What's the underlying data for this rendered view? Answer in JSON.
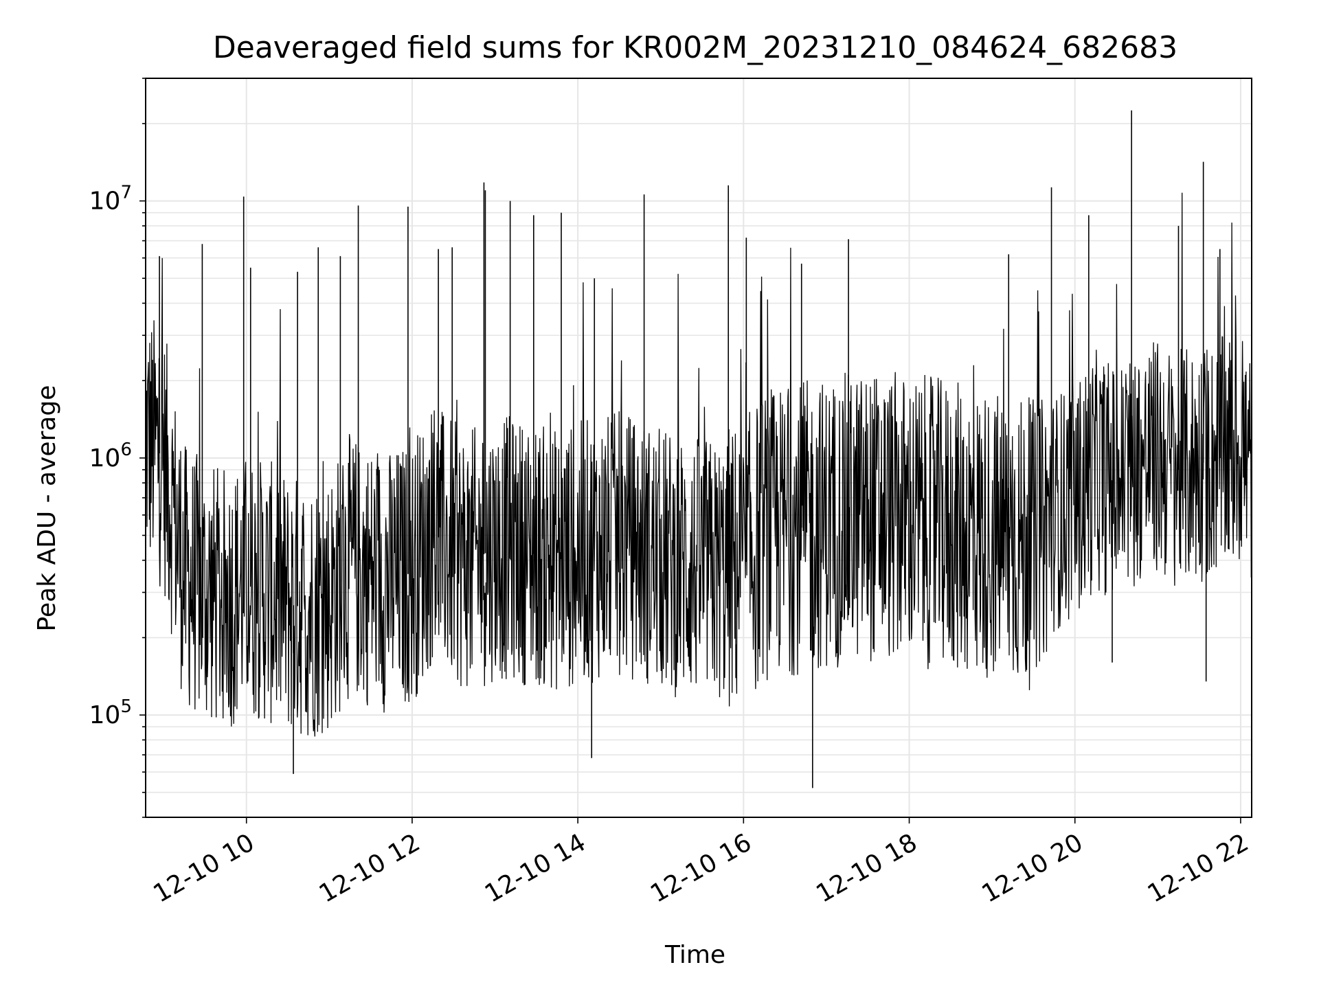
{
  "chart_data": {
    "type": "line",
    "title": "Deaveraged field sums for KR002M_20231210_084624_682683",
    "xlabel": "Time",
    "ylabel": "Peak ADU - average",
    "yscale": "log",
    "ylim": [
      40000,
      30000000
    ],
    "xlim": [
      "2023-12-10T08:47",
      "2023-12-10T22:08"
    ],
    "grid": true,
    "line_color": "#000000",
    "grid_color": "#e6e6e6",
    "y_ticks": [
      {
        "value": 100000,
        "base": "10",
        "exp": "5"
      },
      {
        "value": 1000000,
        "base": "10",
        "exp": "6"
      },
      {
        "value": 10000000,
        "base": "10",
        "exp": "7"
      }
    ],
    "x_ticks": [
      {
        "value": "2023-12-10T10:00",
        "label": "12-10 10"
      },
      {
        "value": "2023-12-10T12:00",
        "label": "12-10 12"
      },
      {
        "value": "2023-12-10T14:00",
        "label": "12-10 14"
      },
      {
        "value": "2023-12-10T16:00",
        "label": "12-10 16"
      },
      {
        "value": "2023-12-10T18:00",
        "label": "12-10 18"
      },
      {
        "value": "2023-12-10T20:00",
        "label": "12-10 20"
      },
      {
        "value": "2023-12-10T22:00",
        "label": "12-10 22"
      }
    ],
    "series": [
      {
        "x": [
          "2023-12-10T08:47",
          "2023-12-10T09:00",
          "2023-12-10T09:15",
          "2023-12-10T09:30",
          "2023-12-10T09:45",
          "2023-12-10T10:00",
          "2023-12-10T10:15",
          "2023-12-10T10:30",
          "2023-12-10T10:45",
          "2023-12-10T11:00",
          "2023-12-10T11:15",
          "2023-12-10T11:30",
          "2023-12-10T11:45",
          "2023-12-10T12:00",
          "2023-12-10T12:15",
          "2023-12-10T12:30",
          "2023-12-10T12:45",
          "2023-12-10T13:00",
          "2023-12-10T13:15",
          "2023-12-10T13:30",
          "2023-12-10T13:45",
          "2023-12-10T14:00",
          "2023-12-10T14:15",
          "2023-12-10T14:30",
          "2023-12-10T14:45",
          "2023-12-10T15:00",
          "2023-12-10T15:15",
          "2023-12-10T15:30",
          "2023-12-10T15:45",
          "2023-12-10T16:00",
          "2023-12-10T16:15",
          "2023-12-10T16:30",
          "2023-12-10T16:45",
          "2023-12-10T17:00",
          "2023-12-10T17:15",
          "2023-12-10T17:30",
          "2023-12-10T17:45",
          "2023-12-10T18:00",
          "2023-12-10T18:15",
          "2023-12-10T18:30",
          "2023-12-10T18:45",
          "2023-12-10T19:00",
          "2023-12-10T19:15",
          "2023-12-10T19:30",
          "2023-12-10T19:45",
          "2023-12-10T20:00",
          "2023-12-10T20:15",
          "2023-12-10T20:30",
          "2023-12-10T20:45",
          "2023-12-10T21:00",
          "2023-12-10T21:15",
          "2023-12-10T21:30",
          "2023-12-10T21:45",
          "2023-12-10T22:00",
          "2023-12-10T22:08"
        ],
        "y": [
          1200000,
          1000000,
          350000,
          300000,
          280000,
          320000,
          300000,
          270000,
          260000,
          280000,
          380000,
          350000,
          330000,
          360000,
          520000,
          420000,
          400000,
          450000,
          440000,
          420000,
          400000,
          420000,
          450000,
          460000,
          440000,
          400000,
          380000,
          370000,
          360000,
          380000,
          500000,
          520000,
          540000,
          560000,
          580000,
          600000,
          590000,
          580000,
          560000,
          540000,
          520000,
          500000,
          480000,
          460000,
          620000,
          680000,
          900000,
          800000,
          950000,
          1000000,
          900000,
          950000,
          1000000,
          1100000,
          900000
        ]
      }
    ],
    "spikes": [
      {
        "x": "2023-12-10T08:57",
        "y": 6100000
      },
      {
        "x": "2023-12-10T09:28",
        "y": 6800000
      },
      {
        "x": "2023-12-10T09:58",
        "y": 10400000
      },
      {
        "x": "2023-12-10T10:03",
        "y": 5500000
      },
      {
        "x": "2023-12-10T10:37",
        "y": 5300000
      },
      {
        "x": "2023-12-10T10:52",
        "y": 6600000
      },
      {
        "x": "2023-12-10T11:08",
        "y": 6100000
      },
      {
        "x": "2023-12-10T11:21",
        "y": 9600000
      },
      {
        "x": "2023-12-10T11:57",
        "y": 9500000
      },
      {
        "x": "2023-12-10T12:19",
        "y": 6500000
      },
      {
        "x": "2023-12-10T12:29",
        "y": 6600000
      },
      {
        "x": "2023-12-10T12:52",
        "y": 11800000
      },
      {
        "x": "2023-12-10T12:53",
        "y": 11000000
      },
      {
        "x": "2023-12-10T13:11",
        "y": 10000000
      },
      {
        "x": "2023-12-10T13:28",
        "y": 8800000
      },
      {
        "x": "2023-12-10T13:48",
        "y": 9000000
      },
      {
        "x": "2023-12-10T14:12",
        "y": 5000000
      },
      {
        "x": "2023-12-10T14:48",
        "y": 10600000
      },
      {
        "x": "2023-12-10T15:49",
        "y": 11500000
      },
      {
        "x": "2023-12-10T16:02",
        "y": 7200000
      },
      {
        "x": "2023-12-10T16:42",
        "y": 5700000
      },
      {
        "x": "2023-12-10T17:16",
        "y": 7100000
      },
      {
        "x": "2023-12-10T19:12",
        "y": 6200000
      },
      {
        "x": "2023-12-10T19:43",
        "y": 11300000
      },
      {
        "x": "2023-12-10T20:10",
        "y": 8800000
      },
      {
        "x": "2023-12-10T20:41",
        "y": 22500000
      },
      {
        "x": "2023-12-10T21:15",
        "y": 8000000
      },
      {
        "x": "2023-12-10T21:33",
        "y": 14200000
      },
      {
        "x": "2023-12-10T21:45",
        "y": 6500000
      },
      {
        "x": "2023-12-10T16:50",
        "y": 52000
      },
      {
        "x": "2023-12-10T10:34",
        "y": 59000
      },
      {
        "x": "2023-12-10T14:10",
        "y": 68000
      },
      {
        "x": "2023-12-10T21:35",
        "y": 135000
      },
      {
        "x": "2023-12-10T20:27",
        "y": 160000
      }
    ]
  }
}
